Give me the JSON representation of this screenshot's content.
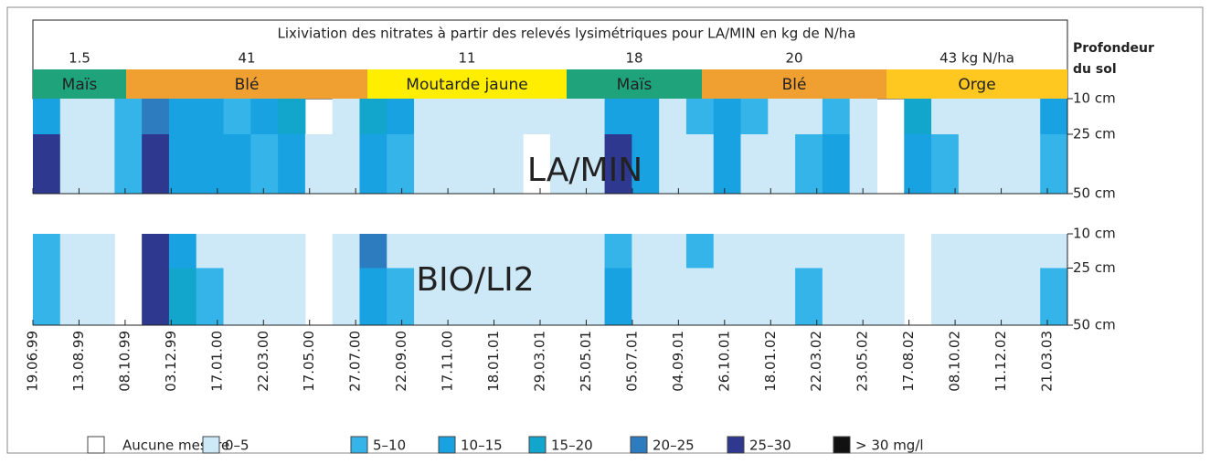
{
  "chart_data": {
    "type": "heatmap",
    "title": "Lixiviation des nitrates à partir des relevés lysimétriques pour LA/MIN en kg de N/ha",
    "depth_title": [
      "Profondeur",
      "du sol"
    ],
    "crops": [
      {
        "name": "Maïs",
        "leaching": "1.5",
        "color": "#1fa37a"
      },
      {
        "name": "Blé",
        "leaching": "41",
        "color": "#f0a030"
      },
      {
        "name": "Moutarde jaune",
        "leaching": "11",
        "color": "#ffee00"
      },
      {
        "name": "Maïs",
        "leaching": "18",
        "color": "#1fa37a"
      },
      {
        "name": "Blé",
        "leaching": "20",
        "color": "#f0a030"
      },
      {
        "name": "Orge",
        "leaching": "43 kg N/ha",
        "color": "#ffc820"
      }
    ],
    "x_labels": [
      "19.06.99",
      "13.08.99",
      "08.10.99",
      "03.12.99",
      "17.01.00",
      "22.03.00",
      "17.05.00",
      "27.07.00",
      "22.09.00",
      "17.11.00",
      "18.01.01",
      "29.03.01",
      "25.05.01",
      "05.07.01",
      "04.09.01",
      "26.10.01",
      "18.01.02",
      "22.03.02",
      "23.05.02",
      "17.08.02",
      "08.10.02",
      "11.12.02",
      "21.03.03"
    ],
    "ylim": [
      10,
      50
    ],
    "yticks": [
      {
        "value": 10,
        "label": "10 cm"
      },
      {
        "value": 25,
        "label": "25 cm"
      },
      {
        "value": 50,
        "label": "50 cm"
      }
    ],
    "depth_bins": [
      10,
      25,
      50
    ],
    "legend": [
      {
        "label": "Aucune mesure",
        "color": "#ffffff",
        "min": null
      },
      {
        "label": "0–5",
        "color": "#cde9f8",
        "min": 0
      },
      {
        "label": "5–10",
        "color": "#35b4ea",
        "min": 5
      },
      {
        "label": "10–15",
        "color": "#18a2e2",
        "min": 10
      },
      {
        "label": "15–20",
        "color": "#12a6cc",
        "min": 15
      },
      {
        "label": "20–25",
        "color": "#2d7cc0",
        "min": 20
      },
      {
        "label": "25–30",
        "color": "#2e388e",
        "min": 25
      },
      {
        "label": "> 30 mg/l",
        "color": "#111111",
        "min": 30
      }
    ],
    "panels": [
      {
        "name": "LA/MIN",
        "rows": [
          {
            "values": [
              10,
              0,
              0,
              5,
              20,
              10,
              10,
              5,
              10,
              15,
              null,
              0,
              15,
              10,
              0,
              0,
              0,
              0,
              0,
              0,
              0,
              10,
              10,
              0,
              5,
              10,
              5,
              0,
              0,
              5,
              0,
              null,
              15,
              0,
              0,
              0,
              0,
              10
            ]
          },
          {
            "values": [
              25,
              0,
              0,
              5,
              25,
              10,
              10,
              10,
              5,
              10,
              0,
              0,
              10,
              5,
              0,
              0,
              0,
              0,
              null,
              0,
              0,
              25,
              10,
              0,
              0,
              10,
              0,
              0,
              5,
              10,
              0,
              null,
              10,
              5,
              0,
              0,
              0,
              5
            ]
          }
        ]
      },
      {
        "name": "BIO/LI2",
        "rows": [
          {
            "values": [
              5,
              0,
              0,
              null,
              25,
              10,
              0,
              0,
              0,
              0,
              null,
              0,
              20,
              0,
              0,
              0,
              0,
              0,
              0,
              0,
              0,
              5,
              0,
              0,
              5,
              0,
              0,
              0,
              0,
              0,
              0,
              0,
              null,
              0,
              0,
              0,
              0,
              0
            ]
          },
          {
            "values": [
              5,
              0,
              0,
              null,
              25,
              15,
              5,
              0,
              0,
              0,
              null,
              0,
              10,
              5,
              0,
              0,
              0,
              0,
              0,
              0,
              0,
              10,
              0,
              0,
              0,
              0,
              0,
              0,
              5,
              0,
              0,
              0,
              null,
              0,
              0,
              0,
              0,
              5
            ]
          }
        ]
      }
    ]
  }
}
